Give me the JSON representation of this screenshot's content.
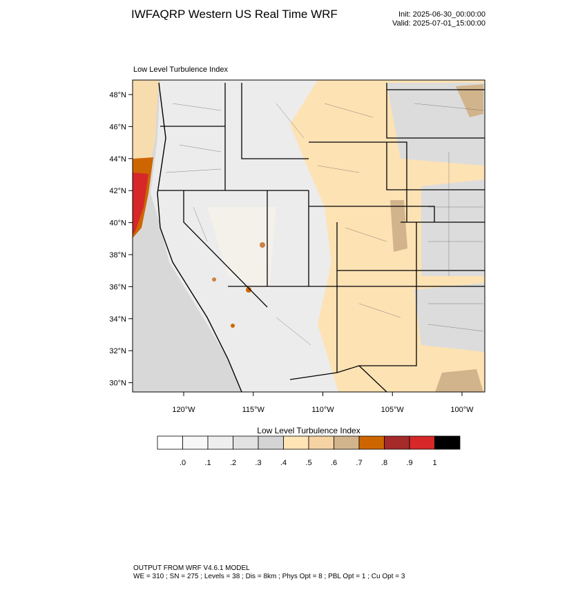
{
  "header": {
    "title": "IWFAQRP Western US Real Time WRF",
    "init": "Init: 2025-06-30_00:00:00",
    "valid": "Valid: 2025-07-01_15:00:00"
  },
  "map": {
    "title": "Low Level Turbulence Index",
    "lat_labels": [
      "48°N",
      "46°N",
      "44°N",
      "42°N",
      "40°N",
      "38°N",
      "36°N",
      "34°N",
      "32°N",
      "30°N"
    ],
    "lon_labels": [
      "120°W",
      "115°W",
      "110°W",
      "105°W",
      "100°W"
    ]
  },
  "colorbar": {
    "title": "Low Level Turbulence Index",
    "colors": [
      "#ffffff",
      "#f7f7f7",
      "#eeeeee",
      "#e2e2e2",
      "#d4d4d4",
      "#ffe4b5",
      "#f5d3a2",
      "#d2b48c",
      "#cd6600",
      "#a52a2a",
      "#d62828",
      "#000000"
    ],
    "labels": [
      ".0",
      ".1",
      ".2",
      ".3",
      ".4",
      ".5",
      ".6",
      ".7",
      ".8",
      ".9",
      "1"
    ]
  },
  "footer": {
    "line1": "OUTPUT FROM WRF V4.6.1 MODEL",
    "line2": "WE = 310 ; SN = 275 ; Levels = 38 ; Dis = 8km ; Phys Opt = 8 ; PBL Opt = 1 ; Cu Opt = 3"
  }
}
